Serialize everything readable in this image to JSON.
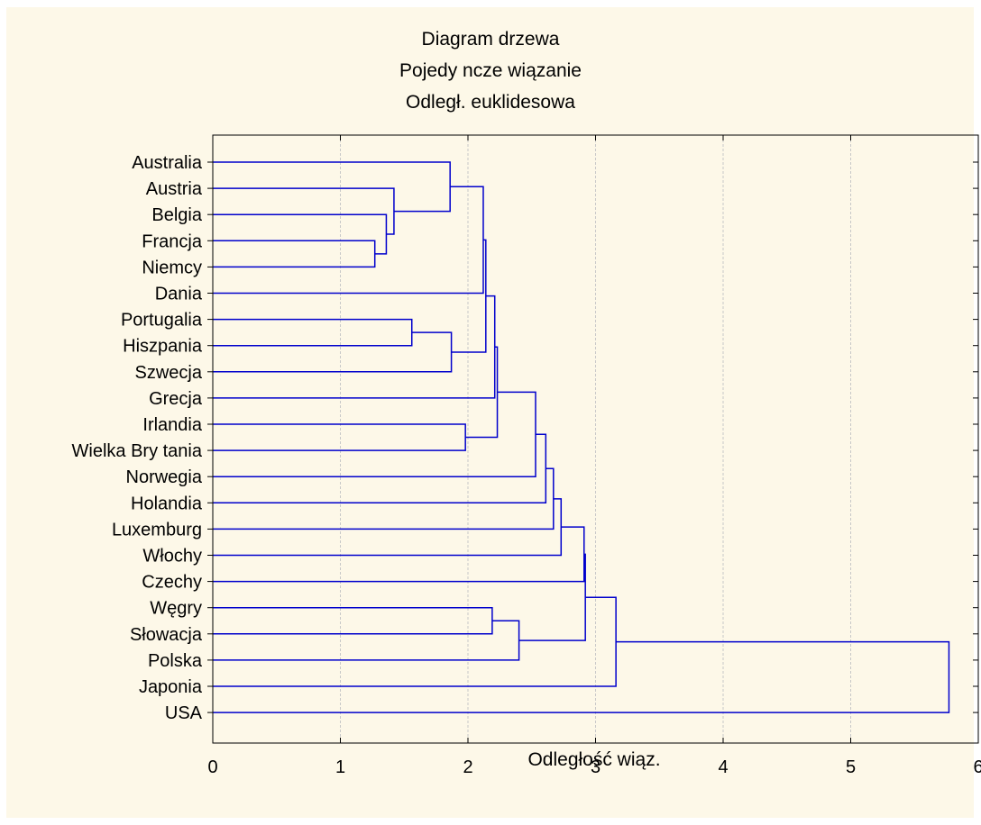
{
  "chart_data": {
    "type": "dendrogram",
    "title": [
      "Diagram drzewa",
      "Pojedy ncze wiązanie",
      "Odległ. euklidesowa"
    ],
    "xlabel": "Odległość wiąz.",
    "xlim": [
      0,
      6
    ],
    "xticks": [
      0,
      1,
      2,
      3,
      4,
      5,
      6
    ],
    "grid": "vertical dashed",
    "colors": {
      "links": "#0000cc",
      "background": "#fdf8e8",
      "grid": "#c8c8c8"
    },
    "leaves": [
      "Australia",
      "Austria",
      "Belgia",
      "Francja",
      "Niemcy",
      "Dania",
      "Portugalia",
      "Hiszpania",
      "Szwecja",
      "Grecja",
      "Irlandia",
      "Wielka Bry tania",
      "Norwegia",
      "Holandia",
      "Luxemburg",
      "Włochy",
      "Czechy",
      "Węgry",
      "Słowacja",
      "Polska",
      "Japonia",
      "USA"
    ],
    "merges": [
      {
        "a": "Francja",
        "b": "Niemcy",
        "height": 1.27
      },
      {
        "a": "Belgia",
        "b": 0,
        "height": 1.36
      },
      {
        "a": "Austria",
        "b": 1,
        "height": 1.42
      },
      {
        "a": "Portugalia",
        "b": "Hiszpania",
        "height": 1.56
      },
      {
        "a": "Australia",
        "b": 2,
        "height": 1.86
      },
      {
        "a": 3,
        "b": "Szwecja",
        "height": 1.87
      },
      {
        "a": "Irlandia",
        "b": "Wielka Bry tania",
        "height": 1.98
      },
      {
        "a": 4,
        "b": "Dania",
        "height": 2.12
      },
      {
        "a": 7,
        "b": 5,
        "height": 2.14
      },
      {
        "a": "Węgry",
        "b": "Słowacja",
        "height": 2.19
      },
      {
        "a": 8,
        "b": "Grecja",
        "height": 2.21
      },
      {
        "a": 10,
        "b": 6,
        "height": 2.23
      },
      {
        "a": 9,
        "b": "Polska",
        "height": 2.4
      },
      {
        "a": 11,
        "b": "Norwegia",
        "height": 2.53
      },
      {
        "a": 13,
        "b": "Holandia",
        "height": 2.61
      },
      {
        "a": 14,
        "b": "Luxemburg",
        "height": 2.67
      },
      {
        "a": 15,
        "b": "Włochy",
        "height": 2.73
      },
      {
        "a": 16,
        "b": "Czechy",
        "height": 2.91
      },
      {
        "a": 17,
        "b": 12,
        "height": 2.92
      },
      {
        "a": 18,
        "b": "Japonia",
        "height": 3.16
      },
      {
        "a": 19,
        "b": "USA",
        "height": 5.77
      }
    ]
  }
}
